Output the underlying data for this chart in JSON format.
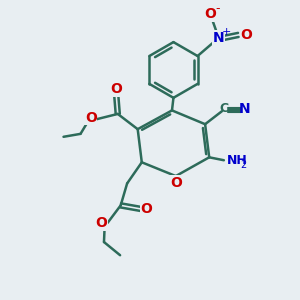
{
  "bg_color": "#e8eef2",
  "bond_color": "#2d6b5a",
  "bond_width": 1.8,
  "O_color": "#cc0000",
  "N_color": "#0000cc",
  "C_color": "#2d6b5a",
  "figsize": [
    3.0,
    3.0
  ],
  "dpi": 100,
  "xlim": [
    0,
    10
  ],
  "ylim": [
    0,
    10
  ]
}
